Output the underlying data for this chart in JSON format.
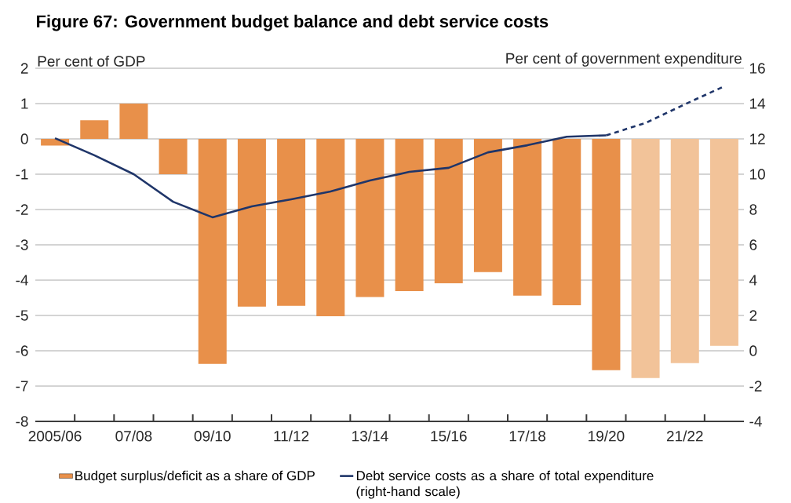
{
  "chart_data": {
    "type": "bar",
    "title": "Figure 67: Government budget balance and debt service costs",
    "ylabel": "Per cent of GDP",
    "y2label": "Per cent of government expenditure",
    "categories": [
      "2005/06",
      null,
      "07/08",
      null,
      "09/10",
      null,
      "11/12",
      null,
      "13/14",
      null,
      "15/16",
      null,
      "17/18",
      null,
      "19/20",
      null,
      "21/22",
      null
    ],
    "series": [
      {
        "name": "Budget surplus/deficit as a share of GDP",
        "colors": [
          "#e8904a",
          "#e8904a",
          "#e8904a",
          "#e8904a",
          "#e8904a",
          "#e8904a",
          "#e8904a",
          "#e8904a",
          "#e8904a",
          "#e8904a",
          "#e8904a",
          "#e8904a",
          "#e8904a",
          "#e8904a",
          "#e8904a",
          "#f2c399",
          "#f2c399",
          "#f2c399"
        ],
        "values": [
          -0.19,
          0.53,
          1.0,
          -1.0,
          -6.37,
          -4.75,
          -4.73,
          -5.02,
          -4.48,
          -4.31,
          -4.09,
          -3.77,
          -4.44,
          -4.71,
          -6.55,
          -6.77,
          -6.35,
          -5.86
        ]
      },
      {
        "name": "Debt service costs as a share of total expenditure (right-hand scale)",
        "type": "line",
        "axis": "y2",
        "color": "#1f3569",
        "line_style": "solid",
        "values": [
          12.04,
          11.07,
          10.0,
          8.44,
          7.56,
          8.18,
          8.58,
          9.02,
          9.64,
          10.13,
          10.36,
          11.24,
          11.64,
          12.12,
          12.2,
          null,
          null,
          null
        ]
      },
      {
        "type": "line",
        "axis": "y2",
        "color": "#1f3569",
        "line_style": "dashed",
        "values": [
          null,
          null,
          null,
          null,
          null,
          null,
          null,
          null,
          null,
          null,
          null,
          null,
          null,
          null,
          12.2,
          12.9,
          13.96,
          14.98
        ]
      }
    ],
    "ylim": [
      -8,
      2
    ],
    "yticks": [
      -8,
      -7,
      -6,
      -5,
      -4,
      -3,
      -2,
      -1,
      0,
      1,
      2
    ],
    "y2lim": [
      -4,
      16
    ],
    "y2ticks": [
      -4,
      -2,
      0,
      2,
      4,
      6,
      8,
      10,
      12,
      14,
      16
    ],
    "grid": "y",
    "legend": "bottom"
  }
}
